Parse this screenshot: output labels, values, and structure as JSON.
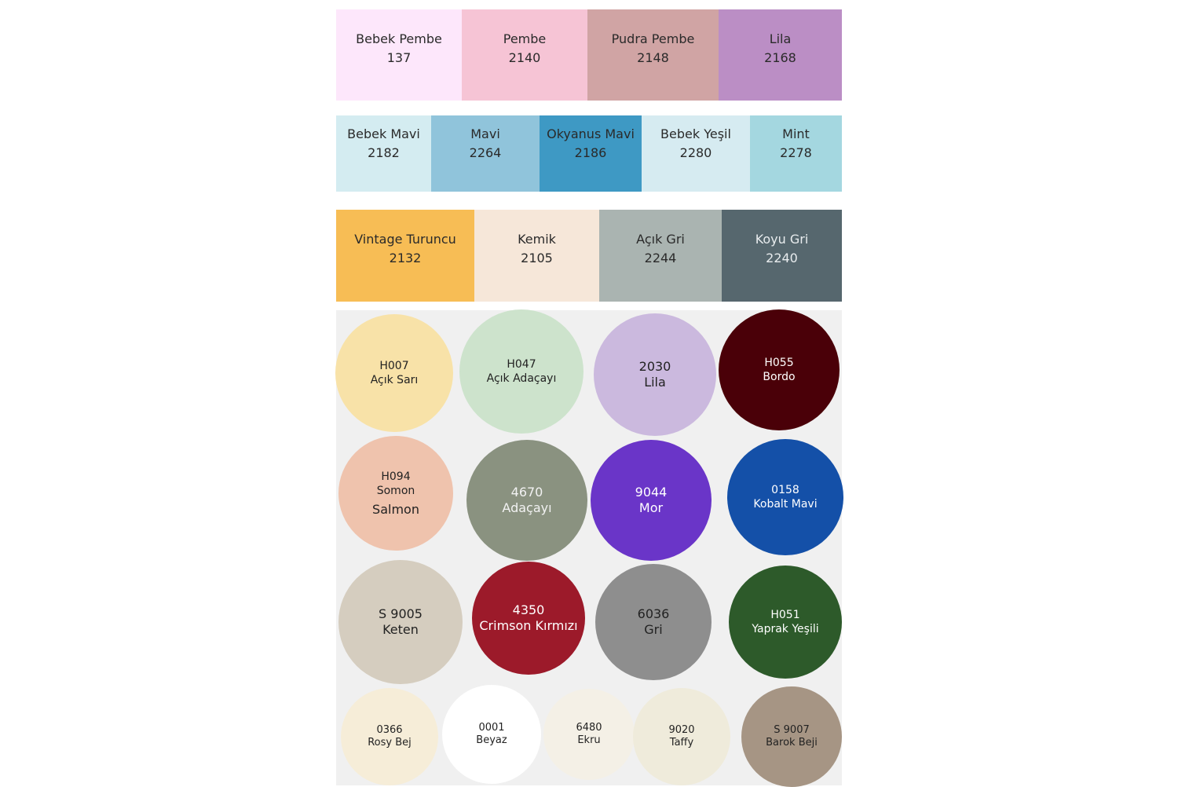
{
  "swatch_rows": [
    [
      {
        "name": "Bebek Pembe",
        "code": "137",
        "color": "#fde7fb"
      },
      {
        "name": "Pembe",
        "code": "2140",
        "color": "#f6c4d5"
      },
      {
        "name": "Pudra Pembe",
        "code": "2148",
        "color": "#d0a4a4"
      },
      {
        "name": "Lila",
        "code": "2168",
        "color": "#bb8ec5"
      }
    ],
    [
      {
        "name": "Bebek Mavi",
        "code": "2182",
        "color": "#d4ecf1"
      },
      {
        "name": "Mavi",
        "code": "2264",
        "color": "#90c4db"
      },
      {
        "name": "Okyanus Mavi",
        "code": "2186",
        "color": "#3e99c4"
      },
      {
        "name": "Bebek Yeşil",
        "code": "2280",
        "color": "#d6ebf1"
      },
      {
        "name": "Mint",
        "code": "2278",
        "color": "#a4d7e0"
      }
    ],
    [
      {
        "name": "Vintage Turuncu",
        "code": "2132",
        "color": "#f7bd55"
      },
      {
        "name": "Kemik",
        "code": "2105",
        "color": "#f6e7d9"
      },
      {
        "name": "Açık Gri",
        "code": "2244",
        "color": "#aab4b1"
      },
      {
        "name": "Koyu Gri",
        "code": "2240",
        "color": "#56676e",
        "text_color": "#e8ecee"
      }
    ]
  ],
  "circles": [
    {
      "code": "H007",
      "name": "Açık Sarı",
      "color": "#f8e2a8"
    },
    {
      "code": "H047",
      "name": "Açık Adaçayı",
      "color": "#cde3cc"
    },
    {
      "code": "2030",
      "name": "Lila",
      "color": "#cbb9de"
    },
    {
      "code": "H055",
      "name": "Bordo",
      "color": "#4a0008",
      "text_color": "#ffffff"
    },
    {
      "code": "H094",
      "name": "Somon",
      "extra": "Salmon",
      "color": "#efc3ad"
    },
    {
      "code": "4670",
      "name": "Adaçayı",
      "color": "#8a9280",
      "text_color": "#f2f2f2"
    },
    {
      "code": "9044",
      "name": "Mor",
      "color": "#6a35c8",
      "text_color": "#ffffff"
    },
    {
      "code": "0158",
      "name": "Kobalt Mavi",
      "color": "#1450a8",
      "text_color": "#ffffff"
    },
    {
      "code": "S 9005",
      "name": "Keten",
      "color": "#d5cdbf"
    },
    {
      "code": "4350",
      "name": "Crimson Kırmızı",
      "color": "#9c1a2a",
      "text_color": "#ffffff"
    },
    {
      "code": "6036",
      "name": "Gri",
      "color": "#8e8e8e",
      "text_color": "#222222"
    },
    {
      "code": "H051",
      "name": "Yaprak Yeşili",
      "color": "#2d5a2a",
      "text_color": "#ffffff"
    },
    {
      "code": "0366",
      "name": "Rosy Bej",
      "color": "#f6edd8"
    },
    {
      "code": "0001",
      "name": "Beyaz",
      "color": "#ffffff"
    },
    {
      "code": "6480",
      "name": "Ekru",
      "color": "#f4f0e6"
    },
    {
      "code": "9020",
      "name": "Taffy",
      "color": "#efebdb"
    },
    {
      "code": "S 9007",
      "name": "Barok Beji",
      "color": "#a69584"
    }
  ]
}
